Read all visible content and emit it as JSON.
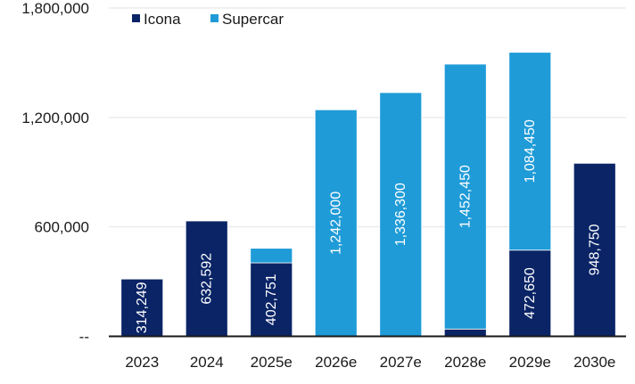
{
  "chart_data": {
    "type": "bar",
    "stacked": true,
    "categories": [
      "2023",
      "2024",
      "2025e",
      "2026e",
      "2027e",
      "2028e",
      "2029e",
      "2030e"
    ],
    "series": [
      {
        "name": "Icona",
        "color": "#0a2466",
        "values": [
          314249,
          632592,
          402751,
          0,
          0,
          40000,
          472650,
          948750
        ]
      },
      {
        "name": "Supercar",
        "color": "#1f9bd7",
        "values": [
          0,
          0,
          80000,
          1242000,
          1336300,
          1452450,
          1084450,
          0
        ]
      }
    ],
    "data_labels": [
      {
        "category": "2023",
        "series": "Icona",
        "text": "314,249"
      },
      {
        "category": "2024",
        "series": "Icona",
        "text": "632,592"
      },
      {
        "category": "2025e",
        "series": "Icona",
        "text": "402,751"
      },
      {
        "category": "2026e",
        "series": "Supercar",
        "text": "1,242,000"
      },
      {
        "category": "2027e",
        "series": "Supercar",
        "text": "1,336,300"
      },
      {
        "category": "2028e",
        "series": "Supercar",
        "text": "1,452,450"
      },
      {
        "category": "2029e",
        "series": "Icona",
        "text": "472,650"
      },
      {
        "category": "2029e",
        "series": "Supercar",
        "text": "1,084,450"
      },
      {
        "category": "2030e",
        "series": "Icona",
        "text": "948,750"
      }
    ],
    "y_ticks": [
      {
        "value": 0,
        "label": "--"
      },
      {
        "value": 600000,
        "label": "600,000"
      },
      {
        "value": 1200000,
        "label": "1,200,000"
      },
      {
        "value": 1800000,
        "label": "1,800,000"
      }
    ],
    "ylim": [
      0,
      1800000
    ],
    "title": "",
    "xlabel": "",
    "ylabel": "",
    "grid": true,
    "legend_position": "top-left"
  }
}
